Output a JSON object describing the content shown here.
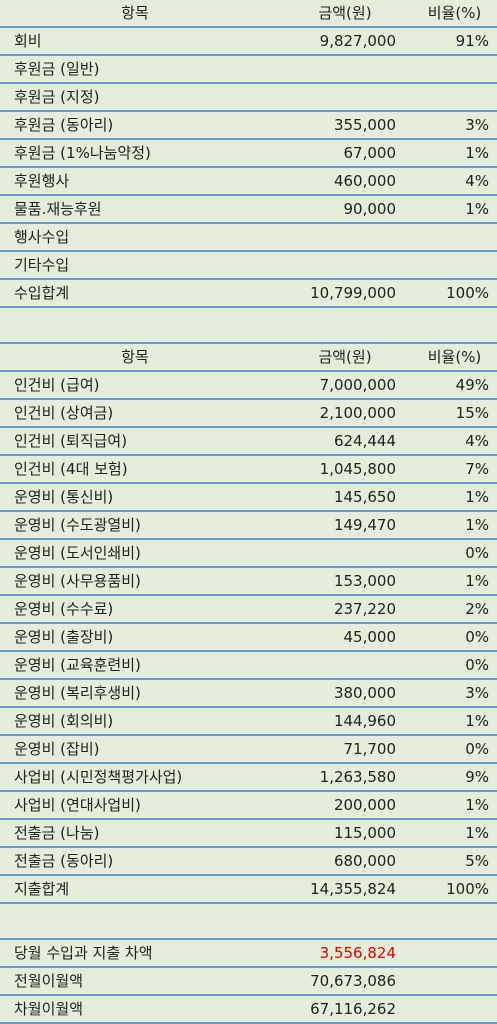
{
  "income": {
    "header": {
      "item": "항목",
      "amount": "금액(원)",
      "ratio": "비율(%)"
    },
    "rows": [
      {
        "item": "회비",
        "amount": "9,827,000",
        "ratio": "91%"
      },
      {
        "item": "후원금 (일반)",
        "amount": "",
        "ratio": ""
      },
      {
        "item": "후원금 (지정)",
        "amount": "",
        "ratio": ""
      },
      {
        "item": "후원금 (동아리)",
        "amount": "355,000",
        "ratio": "3%"
      },
      {
        "item": "후원금 (1%나눔약정)",
        "amount": "67,000",
        "ratio": "1%"
      },
      {
        "item": "후원행사",
        "amount": "460,000",
        "ratio": "4%"
      },
      {
        "item": "물품.재능후원",
        "amount": "90,000",
        "ratio": "1%"
      },
      {
        "item": "행사수입",
        "amount": "",
        "ratio": ""
      },
      {
        "item": "기타수입",
        "amount": "",
        "ratio": ""
      },
      {
        "item": "수입합계",
        "amount": "10,799,000",
        "ratio": "100%"
      }
    ]
  },
  "expense": {
    "header": {
      "item": "항목",
      "amount": "금액(원)",
      "ratio": "비율(%)"
    },
    "rows": [
      {
        "item": "인건비 (급여)",
        "amount": "7,000,000",
        "ratio": "49%"
      },
      {
        "item": "인건비 (상여금)",
        "amount": "2,100,000",
        "ratio": "15%"
      },
      {
        "item": "인건비 (퇴직급여)",
        "amount": "624,444",
        "ratio": "4%"
      },
      {
        "item": "인건비 (4대 보험)",
        "amount": "1,045,800",
        "ratio": "7%"
      },
      {
        "item": "운영비 (통신비)",
        "amount": "145,650",
        "ratio": "1%"
      },
      {
        "item": "운영비 (수도광열비)",
        "amount": "149,470",
        "ratio": "1%"
      },
      {
        "item": "운영비 (도서인쇄비)",
        "amount": "",
        "ratio": "0%"
      },
      {
        "item": "운영비 (사무용품비)",
        "amount": "153,000",
        "ratio": "1%"
      },
      {
        "item": "운영비 (수수료)",
        "amount": "237,220",
        "ratio": "2%"
      },
      {
        "item": "운영비 (출장비)",
        "amount": "45,000",
        "ratio": "0%"
      },
      {
        "item": "운영비 (교육훈련비)",
        "amount": "",
        "ratio": "0%"
      },
      {
        "item": "운영비 (복리후생비)",
        "amount": "380,000",
        "ratio": "3%"
      },
      {
        "item": "운영비 (회의비)",
        "amount": "144,960",
        "ratio": "1%"
      },
      {
        "item": "운영비 (잡비)",
        "amount": "71,700",
        "ratio": "0%"
      },
      {
        "item": "사업비 (시민정책평가사업)",
        "amount": "1,263,580",
        "ratio": "9%"
      },
      {
        "item": "사업비 (연대사업비)",
        "amount": "200,000",
        "ratio": "1%"
      },
      {
        "item": "전출금 (나눔)",
        "amount": "115,000",
        "ratio": "1%"
      },
      {
        "item": "전출금 (동아리)",
        "amount": "680,000",
        "ratio": "5%"
      },
      {
        "item": "지출합계",
        "amount": "14,355,824",
        "ratio": "100%"
      }
    ]
  },
  "summary": {
    "rows": [
      {
        "item": "당월 수입과 지출 차액",
        "amount": "3,556,824",
        "ratio": ""
      },
      {
        "item": "전월이월액",
        "amount": "70,673,086",
        "ratio": ""
      },
      {
        "item": "차월이월액",
        "amount": "67,116,262",
        "ratio": ""
      }
    ],
    "highlight_color": "#e00000"
  }
}
